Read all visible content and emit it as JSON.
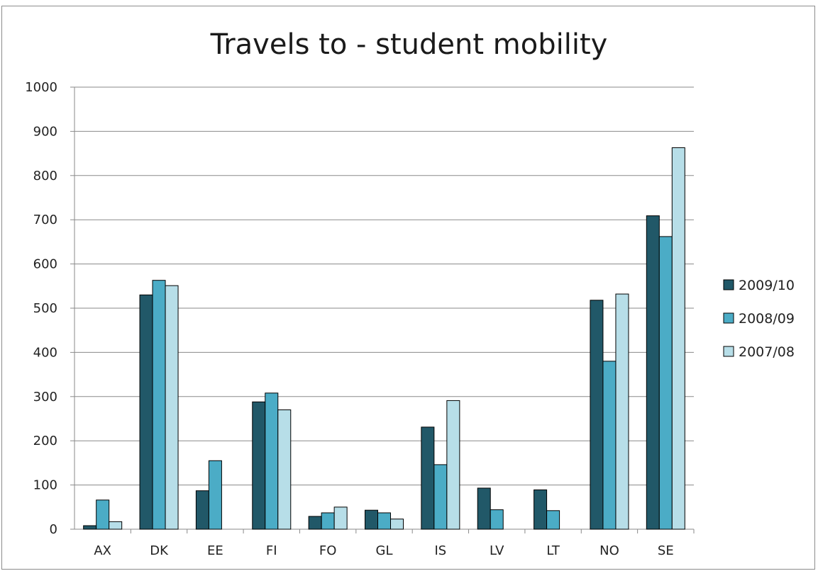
{
  "chart_data": {
    "type": "bar",
    "title": "Travels to - student mobility",
    "xlabel": "",
    "ylabel": "",
    "ylim": [
      0,
      1000
    ],
    "yticks": [
      0,
      100,
      200,
      300,
      400,
      500,
      600,
      700,
      800,
      900,
      1000
    ],
    "grid": true,
    "legend_position": "right",
    "categories": [
      "AX",
      "DK",
      "EE",
      "FI",
      "FO",
      "GL",
      "IS",
      "LV",
      "LT",
      "NO",
      "SE"
    ],
    "series": [
      {
        "name": "2009/10",
        "color": "#215868",
        "values": [
          8,
          530,
          87,
          288,
          29,
          43,
          231,
          93,
          89,
          518,
          709
        ]
      },
      {
        "name": "2008/09",
        "color": "#4bacc6",
        "values": [
          66,
          563,
          155,
          308,
          37,
          37,
          146,
          44,
          42,
          380,
          662
        ]
      },
      {
        "name": "2007/08",
        "color": "#b7dee8",
        "values": [
          17,
          551,
          0,
          270,
          50,
          23,
          291,
          0,
          0,
          532,
          863
        ]
      }
    ]
  }
}
